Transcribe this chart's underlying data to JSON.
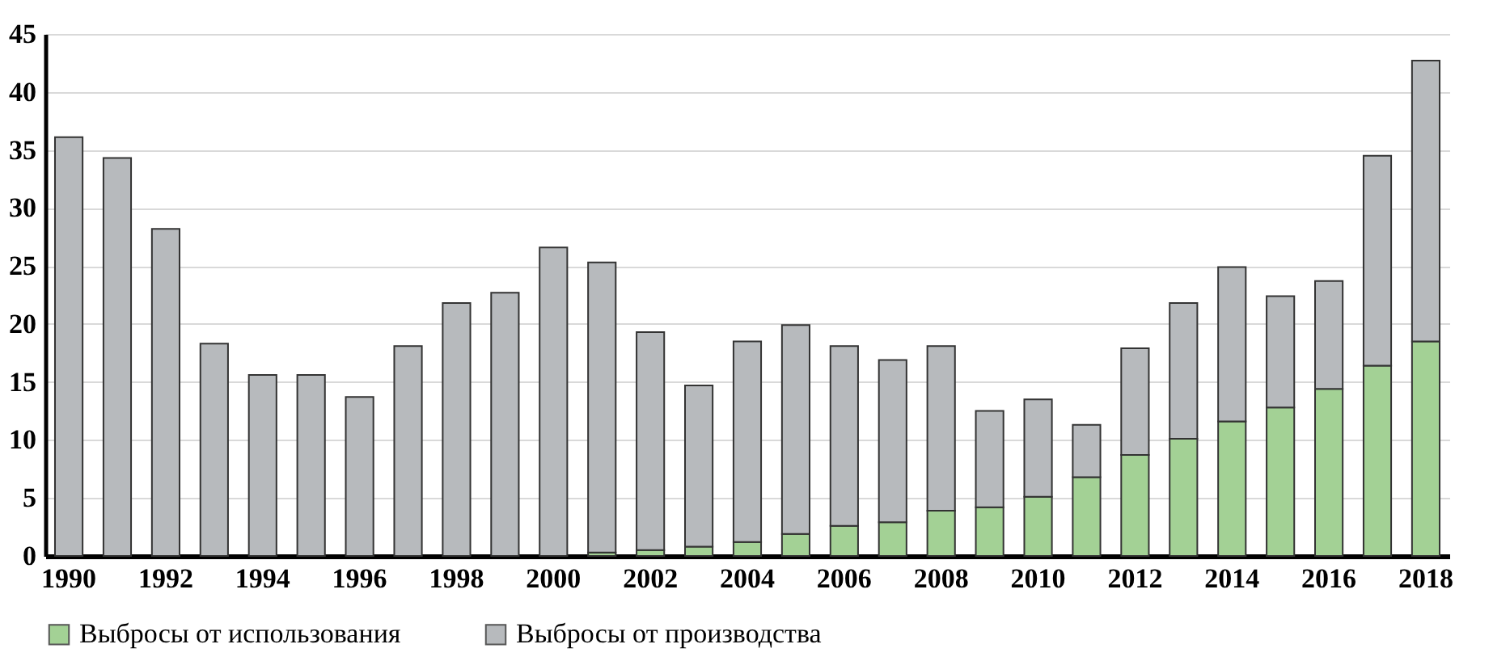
{
  "chart_data": {
    "type": "bar",
    "stacked": true,
    "categories": [
      "1990",
      null,
      "1992",
      null,
      "1994",
      null,
      "1996",
      null,
      "1998",
      null,
      "2000",
      null,
      "2002",
      null,
      "2004",
      null,
      "2006",
      null,
      "2008",
      null,
      "2010",
      null,
      "2012",
      null,
      "2014",
      null,
      "2016",
      null,
      "2018"
    ],
    "series": [
      {
        "name": "Выбросы от использования",
        "color": "#a3d195",
        "values": [
          null,
          null,
          null,
          null,
          null,
          null,
          null,
          null,
          null,
          null,
          null,
          0.3,
          0.5,
          0.8,
          1.2,
          1.9,
          2.6,
          2.9,
          3.9,
          4.2,
          5.1,
          6.8,
          8.7,
          10.1,
          11.6,
          12.8,
          14.4,
          16.4,
          18.5
        ]
      },
      {
        "name": "Выбросы от производства",
        "color": "#b7babd",
        "values": [
          36.1,
          34.3,
          28.2,
          18.3,
          15.6,
          15.6,
          13.7,
          18.1,
          21.8,
          22.7,
          26.6,
          25.0,
          18.8,
          13.9,
          17.3,
          18.0,
          15.5,
          14.0,
          14.2,
          8.3,
          8.4,
          4.5,
          9.2,
          11.7,
          13.3,
          9.6,
          9.3,
          18.1,
          24.2
        ]
      }
    ],
    "ylim": [
      0,
      45
    ],
    "yticks": [
      0,
      5,
      10,
      15,
      20,
      25,
      30,
      35,
      40,
      45
    ],
    "grid": "y",
    "legend": "bottom"
  }
}
